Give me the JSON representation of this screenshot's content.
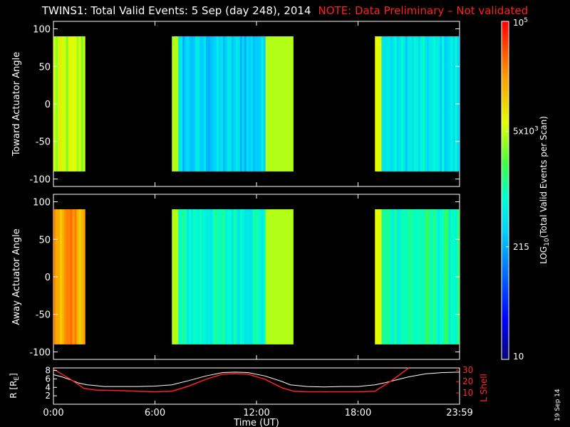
{
  "header": {
    "title": "TWINS1: Total Valid Events:  5 Sep (day 248), 2014",
    "note": "NOTE: Data Preliminary – Not validated",
    "note_color": "#ff2020"
  },
  "stamp": "19 Sep 14",
  "chart_data": [
    {
      "type": "heatmap",
      "panel": "toward",
      "ylabel": "Toward Actuator Angle",
      "xlim_hours": [
        0,
        24
      ],
      "ylim": [
        -110,
        110
      ],
      "y_data_range": [
        -90,
        90
      ],
      "yticks": [
        100,
        50,
        0,
        -50,
        -100
      ],
      "blocks": [
        {
          "start": "0:00",
          "end": "1:52",
          "log_level": 3.65
        },
        {
          "start": "7:00",
          "end": "14:10",
          "log_level": 2.55
        },
        {
          "start": "19:00",
          "end": "23:59",
          "log_level": 2.7
        }
      ]
    },
    {
      "type": "heatmap",
      "panel": "away",
      "ylabel": "Away Actuator Angle",
      "xlim_hours": [
        0,
        24
      ],
      "ylim": [
        -110,
        110
      ],
      "y_data_range": [
        -90,
        90
      ],
      "yticks": [
        100,
        50,
        0,
        -50,
        -100
      ],
      "blocks": [
        {
          "start": "0:00",
          "end": "1:52",
          "log_level": 4.3
        },
        {
          "start": "7:00",
          "end": "14:10",
          "log_level": 2.9
        },
        {
          "start": "19:00",
          "end": "23:59",
          "log_level": 3.0
        }
      ]
    },
    {
      "type": "line",
      "panel": "ephemeris",
      "ylabel": "R [R",
      "ylabel_sub": "E",
      "ylabel_tail": "]",
      "y2label": "L Shell",
      "xlabel": "Time (UT)",
      "xtick_labels": [
        "0:00",
        "6:00",
        "12:00",
        "18:00",
        "23:59"
      ],
      "xtick_hours": [
        0,
        6,
        12,
        18,
        24
      ],
      "yticks": [
        2,
        4,
        6,
        8
      ],
      "y2ticks": [
        10,
        20,
        30
      ],
      "ylim": [
        0,
        8.6
      ],
      "y2lim": [
        0,
        32
      ],
      "series": [
        {
          "axis": "left",
          "color": "#ffffff",
          "x": [
            0,
            0.5,
            1,
            1.5,
            2,
            3,
            4,
            5,
            6,
            7,
            8,
            9,
            10,
            10.75,
            11.5,
            12.5,
            13.5,
            14,
            15,
            16,
            17,
            18,
            19,
            19.5,
            20,
            21,
            22,
            23,
            24
          ],
          "y": [
            7.0,
            6.5,
            5.8,
            5.0,
            4.6,
            4.2,
            4.2,
            4.2,
            4.3,
            4.6,
            5.6,
            6.7,
            7.5,
            7.6,
            7.5,
            6.7,
            5.4,
            4.6,
            4.2,
            4.1,
            4.2,
            4.2,
            4.6,
            5.0,
            5.5,
            6.5,
            7.2,
            7.5,
            7.6
          ]
        },
        {
          "axis": "right",
          "color": "#ff2020",
          "x": [
            0,
            1,
            1.8,
            2.5,
            4,
            5,
            6,
            7,
            8,
            9,
            10,
            10.75,
            11.5,
            12.5,
            13.5,
            14.2,
            15,
            16,
            17,
            18,
            19,
            20,
            21
          ],
          "y": [
            31,
            22,
            14,
            12.5,
            12,
            11.5,
            11,
            11.5,
            16,
            22,
            26.5,
            27,
            26.5,
            22,
            14.5,
            11.5,
            11,
            11,
            11,
            11,
            11.5,
            21,
            32
          ]
        }
      ]
    },
    {
      "type": "heatmap",
      "panel": "colorbar",
      "ylabel": "LOG",
      "ylabel_sub": "10",
      "ylabel_tail": "(Total Valid Events per Scan)",
      "scale": "log",
      "range": [
        10,
        100000
      ],
      "tick_labels": [
        {
          "value": 10,
          "label": "10"
        },
        {
          "value": 215,
          "label": "215"
        },
        {
          "value": 5000,
          "label": "5x10",
          "sup": "3"
        },
        {
          "value": 100000,
          "label": "10",
          "sup": "5"
        }
      ]
    }
  ]
}
